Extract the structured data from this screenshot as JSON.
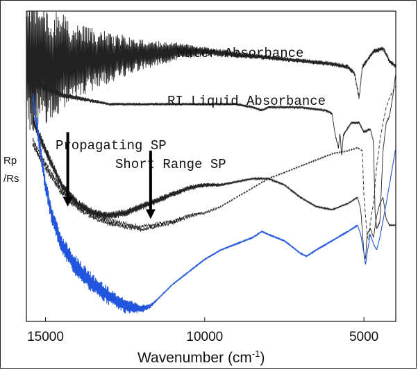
{
  "chart_data": {
    "type": "line",
    "title": "",
    "xlabel": "Wavenumber (cm",
    "xlabel_sup": "-1",
    "xlabel_close": ")",
    "ylabel_line1": "Rp",
    "ylabel_line2": "/Rs",
    "xlim": [
      15600,
      4000
    ],
    "x_reversed": true,
    "ylim": [
      0,
      1
    ],
    "grid": false,
    "legend": "none",
    "xticks": [
      {
        "value": 15000,
        "label": "15000"
      },
      {
        "value": 10000,
        "label": "10000"
      },
      {
        "value": 5000,
        "label": "5000"
      }
    ],
    "annotations": [
      {
        "id": "water",
        "text": "Water Absorbance"
      },
      {
        "id": "ri",
        "text": "RI Liquid Absorbance"
      },
      {
        "id": "psp",
        "text": "Propagating SP"
      },
      {
        "id": "srsp",
        "text": "Short Range SP"
      }
    ],
    "arrows": [
      {
        "id": "psp",
        "x": 14300,
        "y_from": 0.61,
        "y_to": 0.37
      },
      {
        "id": "srsp",
        "x": 11700,
        "y_from": 0.55,
        "y_to": 0.33
      }
    ],
    "series": [
      {
        "id": "water",
        "color": "#222222",
        "style": "solid",
        "noise": [
          [
            15600,
            0.25
          ],
          [
            14000,
            0.12
          ],
          [
            12000,
            0.05
          ],
          [
            10000,
            0.015
          ],
          [
            8000,
            0.008
          ],
          [
            4000,
            0.008
          ]
        ],
        "points": [
          [
            15600,
            0.85
          ],
          [
            15000,
            0.83
          ],
          [
            14000,
            0.84
          ],
          [
            13000,
            0.85
          ],
          [
            12000,
            0.86
          ],
          [
            11000,
            0.87
          ],
          [
            10000,
            0.87
          ],
          [
            9000,
            0.86
          ],
          [
            8000,
            0.85
          ],
          [
            7000,
            0.84
          ],
          [
            6000,
            0.83
          ],
          [
            5500,
            0.82
          ],
          [
            5300,
            0.8
          ],
          [
            5150,
            0.72
          ],
          [
            5050,
            0.82
          ],
          [
            4700,
            0.87
          ],
          [
            4400,
            0.88
          ],
          [
            4200,
            0.84
          ],
          [
            4000,
            0.82
          ]
        ]
      },
      {
        "id": "ri",
        "color": "#222222",
        "style": "solid",
        "noise": [
          [
            15600,
            0.02
          ],
          [
            14500,
            0.01
          ],
          [
            13000,
            0.005
          ],
          [
            4000,
            0.003
          ]
        ],
        "points": [
          [
            15600,
            0.78
          ],
          [
            14500,
            0.73
          ],
          [
            13000,
            0.7
          ],
          [
            11500,
            0.7
          ],
          [
            10000,
            0.7
          ],
          [
            9000,
            0.7
          ],
          [
            8500,
            0.69
          ],
          [
            8200,
            0.68
          ],
          [
            8000,
            0.69
          ],
          [
            7000,
            0.69
          ],
          [
            6200,
            0.68
          ],
          [
            6000,
            0.67
          ],
          [
            5900,
            0.6
          ],
          [
            5800,
            0.56
          ],
          [
            5750,
            0.61
          ],
          [
            5700,
            0.53
          ],
          [
            5650,
            0.6
          ],
          [
            5400,
            0.64
          ],
          [
            5150,
            0.64
          ],
          [
            5000,
            0.61
          ],
          [
            4800,
            0.62
          ],
          [
            4700,
            0.58
          ],
          [
            4650,
            0.35
          ],
          [
            4600,
            0.3
          ],
          [
            4500,
            0.32
          ],
          [
            4400,
            0.55
          ],
          [
            4300,
            0.64
          ],
          [
            4200,
            0.66
          ],
          [
            4100,
            0.72
          ],
          [
            4000,
            0.8
          ]
        ]
      },
      {
        "id": "propagating-sp",
        "color": "#222222",
        "style": "solid",
        "noise": [
          [
            15400,
            0.02
          ],
          [
            14000,
            0.015
          ],
          [
            12000,
            0.012
          ],
          [
            10000,
            0.008
          ],
          [
            9000,
            0.003
          ],
          [
            4000,
            0.002
          ]
        ],
        "points": [
          [
            15400,
            0.65
          ],
          [
            15000,
            0.55
          ],
          [
            14500,
            0.44
          ],
          [
            14000,
            0.38
          ],
          [
            13500,
            0.35
          ],
          [
            13000,
            0.34
          ],
          [
            12500,
            0.35
          ],
          [
            12000,
            0.37
          ],
          [
            11500,
            0.39
          ],
          [
            11000,
            0.41
          ],
          [
            10500,
            0.43
          ],
          [
            10000,
            0.44
          ],
          [
            9500,
            0.44
          ],
          [
            9000,
            0.45
          ],
          [
            8500,
            0.46
          ],
          [
            8000,
            0.46
          ],
          [
            7500,
            0.44
          ],
          [
            7000,
            0.4
          ],
          [
            6500,
            0.37
          ],
          [
            6000,
            0.36
          ],
          [
            5500,
            0.38
          ],
          [
            5200,
            0.4
          ],
          [
            5100,
            0.36
          ],
          [
            5000,
            0.22
          ],
          [
            4950,
            0.2
          ],
          [
            4900,
            0.28
          ],
          [
            4800,
            0.3
          ],
          [
            4700,
            0.27
          ],
          [
            4600,
            0.34
          ],
          [
            4500,
            0.38
          ],
          [
            4400,
            0.4
          ],
          [
            4300,
            0.33
          ],
          [
            4200,
            0.31
          ],
          [
            4000,
            0.31
          ]
        ]
      },
      {
        "id": "short-range-sp",
        "color": "#222222",
        "style": "dashed",
        "noise": [
          [
            15400,
            0.02
          ],
          [
            14000,
            0.015
          ],
          [
            12000,
            0.012
          ],
          [
            10500,
            0.008
          ],
          [
            9500,
            0.002
          ],
          [
            4000,
            0.002
          ]
        ],
        "points": [
          [
            15400,
            0.58
          ],
          [
            15000,
            0.5
          ],
          [
            14500,
            0.42
          ],
          [
            14000,
            0.37
          ],
          [
            13500,
            0.34
          ],
          [
            13000,
            0.32
          ],
          [
            12500,
            0.31
          ],
          [
            12000,
            0.3
          ],
          [
            11500,
            0.31
          ],
          [
            11000,
            0.32
          ],
          [
            10500,
            0.34
          ],
          [
            10000,
            0.35
          ],
          [
            9500,
            0.37
          ],
          [
            9000,
            0.4
          ],
          [
            8500,
            0.43
          ],
          [
            8000,
            0.46
          ],
          [
            7500,
            0.48
          ],
          [
            7000,
            0.5
          ],
          [
            6500,
            0.52
          ],
          [
            6000,
            0.54
          ],
          [
            5500,
            0.55
          ],
          [
            5200,
            0.56
          ],
          [
            5050,
            0.55
          ],
          [
            5000,
            0.4
          ],
          [
            4900,
            0.28
          ],
          [
            4850,
            0.26
          ],
          [
            4800,
            0.32
          ],
          [
            4700,
            0.38
          ],
          [
            4600,
            0.5
          ],
          [
            4500,
            0.58
          ],
          [
            4400,
            0.64
          ],
          [
            4300,
            0.69
          ],
          [
            4200,
            0.72
          ],
          [
            4100,
            0.74
          ],
          [
            4000,
            0.76
          ]
        ]
      },
      {
        "id": "blue-trace",
        "color": "#2255dd",
        "style": "solid",
        "noise": [
          [
            15400,
            0.025
          ],
          [
            14000,
            0.035
          ],
          [
            12500,
            0.025
          ],
          [
            11800,
            0.01
          ],
          [
            11500,
            0.002
          ],
          [
            4000,
            0.002
          ]
        ],
        "points": [
          [
            15400,
            0.72
          ],
          [
            15200,
            0.58
          ],
          [
            15000,
            0.44
          ],
          [
            14800,
            0.34
          ],
          [
            14500,
            0.25
          ],
          [
            14000,
            0.17
          ],
          [
            13500,
            0.12
          ],
          [
            13000,
            0.08
          ],
          [
            12500,
            0.05
          ],
          [
            12000,
            0.04
          ],
          [
            11700,
            0.05
          ],
          [
            11500,
            0.07
          ],
          [
            11000,
            0.12
          ],
          [
            10500,
            0.16
          ],
          [
            10000,
            0.2
          ],
          [
            9500,
            0.23
          ],
          [
            9000,
            0.25
          ],
          [
            8500,
            0.27
          ],
          [
            8200,
            0.29
          ],
          [
            8000,
            0.28
          ],
          [
            7500,
            0.26
          ],
          [
            7000,
            0.22
          ],
          [
            6800,
            0.21
          ],
          [
            6500,
            0.23
          ],
          [
            6000,
            0.26
          ],
          [
            5500,
            0.29
          ],
          [
            5200,
            0.31
          ],
          [
            5100,
            0.28
          ],
          [
            5000,
            0.22
          ],
          [
            4950,
            0.18
          ],
          [
            4900,
            0.22
          ],
          [
            4800,
            0.28
          ],
          [
            4700,
            0.25
          ],
          [
            4600,
            0.23
          ],
          [
            4500,
            0.27
          ],
          [
            4300,
            0.38
          ],
          [
            4100,
            0.5
          ],
          [
            4000,
            0.56
          ]
        ]
      }
    ]
  },
  "annotation_positions": {}
}
